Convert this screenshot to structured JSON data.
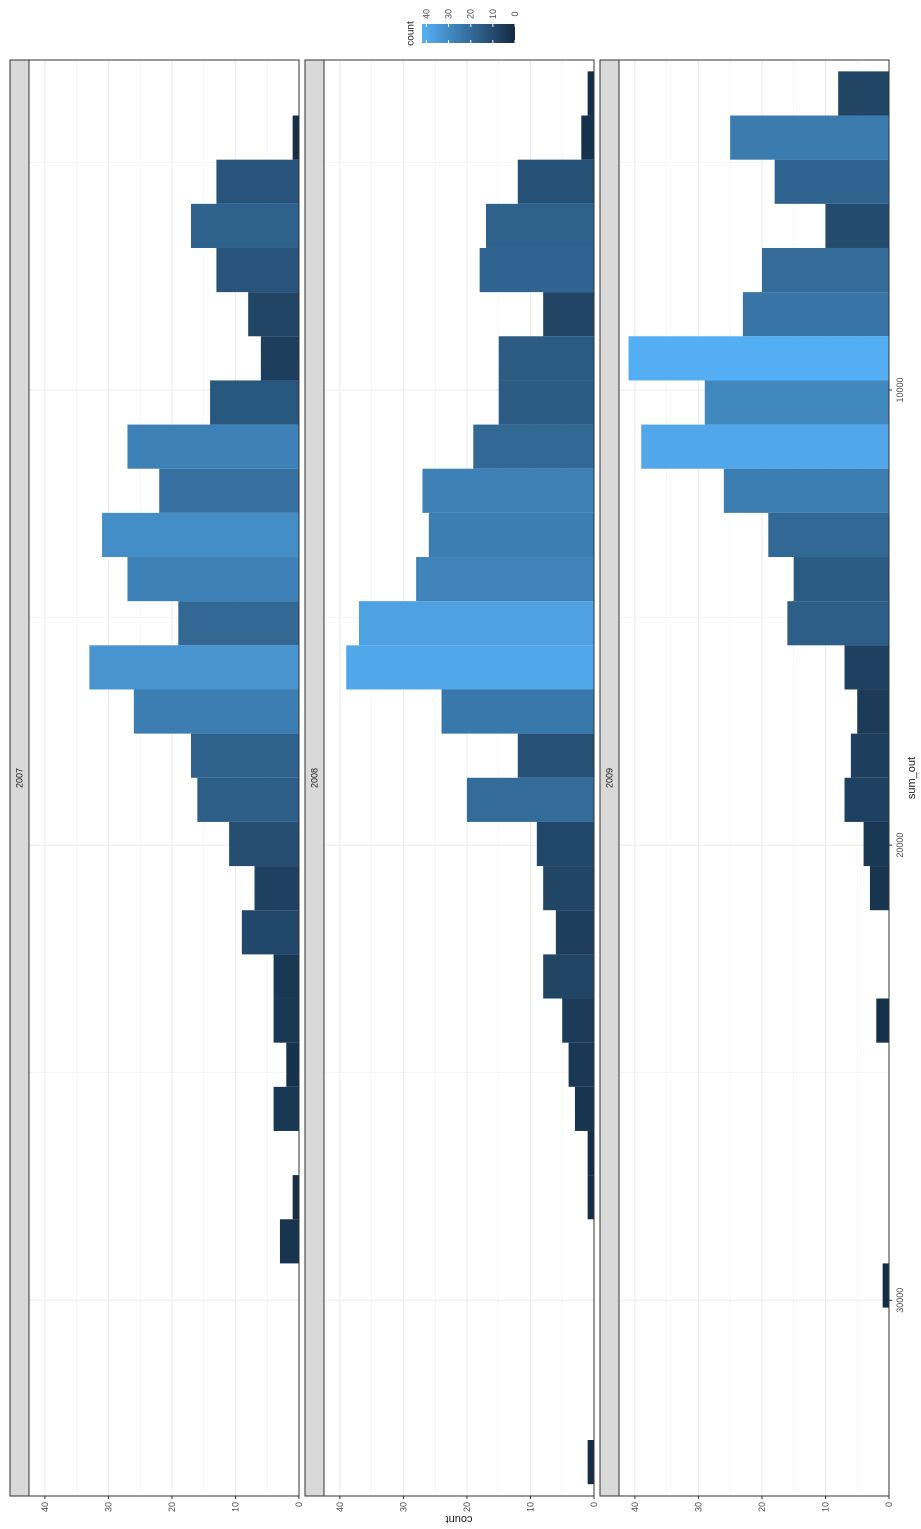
{
  "chart_data": {
    "type": "bar",
    "orientation": "horizontal-bars, figure rotated 90 degrees",
    "xlabel": "sum_out",
    "ylabel": "count",
    "x_ticks": [
      10000,
      20000,
      30000
    ],
    "y_ticks": [
      0,
      10,
      20,
      30,
      40
    ],
    "xlim": [
      2750,
      34300
    ],
    "ylim": [
      0,
      42.5
    ],
    "grid": true,
    "legend": {
      "title": "count",
      "type": "colorbar",
      "position": "top",
      "ticks": [
        0,
        10,
        20,
        30,
        40
      ],
      "color_low": "#132b43",
      "color_high": "#56b1f7",
      "min": 0,
      "max": 42
    },
    "bin_starts": [
      3000,
      3970,
      4940,
      5910,
      6880,
      7850,
      8820,
      9790,
      10760,
      11730,
      12700,
      13670,
      14640,
      15610,
      16580,
      17550,
      18520,
      19490,
      20460,
      21430,
      22400,
      23370,
      24340,
      25310,
      26280,
      27250,
      28220,
      29190,
      30160,
      31130,
      32100,
      33070
    ],
    "bin_width": 970,
    "panels": [
      {
        "strip": "2007",
        "counts": [
          0,
          1,
          13,
          17,
          13,
          8,
          6,
          14,
          27,
          22,
          31,
          27,
          19,
          33,
          26,
          17,
          16,
          11,
          7,
          9,
          4,
          4,
          2,
          4,
          0,
          1,
          3,
          0,
          0,
          0,
          0,
          0
        ]
      },
      {
        "strip": "2008",
        "counts": [
          1,
          2,
          12,
          17,
          18,
          8,
          15,
          15,
          19,
          27,
          26,
          28,
          37,
          39,
          24,
          12,
          20,
          9,
          8,
          6,
          8,
          5,
          4,
          3,
          1,
          1,
          0,
          0,
          0,
          0,
          0,
          1
        ]
      },
      {
        "strip": "2009",
        "counts": [
          8,
          25,
          18,
          10,
          20,
          23,
          41,
          29,
          39,
          26,
          19,
          15,
          16,
          7,
          5,
          6,
          7,
          4,
          3,
          0,
          0,
          2,
          0,
          0,
          0,
          0,
          0,
          1,
          0,
          0,
          0,
          0
        ]
      }
    ]
  }
}
